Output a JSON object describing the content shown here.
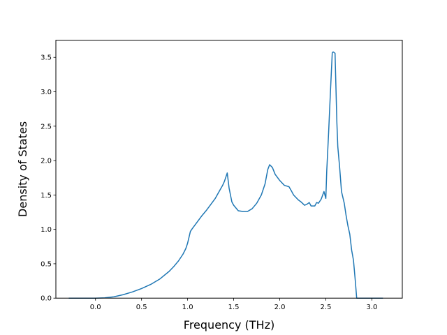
{
  "chart_data": {
    "type": "line",
    "title": "",
    "xlabel": "Frequency (THz)",
    "ylabel": "Density of States",
    "xlim": [
      -0.43,
      3.33
    ],
    "ylim": [
      0,
      3.75
    ],
    "xticks": [
      0.0,
      0.5,
      1.0,
      1.5,
      2.0,
      2.5,
      3.0
    ],
    "xtick_labels": [
      "0.0",
      "0.5",
      "1.0",
      "1.5",
      "2.0",
      "2.5",
      "3.0"
    ],
    "yticks": [
      0.0,
      0.5,
      1.0,
      1.5,
      2.0,
      2.5,
      3.0,
      3.5
    ],
    "ytick_labels": [
      "0.0",
      "0.5",
      "1.0",
      "1.5",
      "2.0",
      "2.5",
      "3.0",
      "3.5"
    ],
    "grid": false,
    "legend": "none",
    "line_color": "#1f77b4",
    "series": [
      {
        "x": [
          -0.29,
          -0.1,
          0.0,
          0.1,
          0.2,
          0.3,
          0.4,
          0.5,
          0.6,
          0.7,
          0.8,
          0.85,
          0.9,
          0.95,
          0.98,
          1.0,
          1.03,
          1.05,
          1.1,
          1.15,
          1.2,
          1.25,
          1.3,
          1.35,
          1.38,
          1.4,
          1.43,
          1.45,
          1.48,
          1.5,
          1.55,
          1.6,
          1.65,
          1.7,
          1.75,
          1.8,
          1.84,
          1.87,
          1.89,
          1.92,
          1.95,
          2.0,
          2.05,
          2.1,
          2.13,
          2.15,
          2.2,
          2.23,
          2.27,
          2.3,
          2.32,
          2.34,
          2.38,
          2.4,
          2.42,
          2.45,
          2.48,
          2.5,
          2.51,
          2.53,
          2.55,
          2.57,
          2.58,
          2.6,
          2.62,
          2.63,
          2.65,
          2.67,
          2.7,
          2.72,
          2.74,
          2.76,
          2.78,
          2.8,
          2.82,
          2.835,
          2.85,
          3.0,
          3.12
        ],
        "y": [
          0.0,
          0.0,
          0.0,
          0.005,
          0.02,
          0.05,
          0.09,
          0.14,
          0.2,
          0.28,
          0.39,
          0.46,
          0.54,
          0.64,
          0.72,
          0.8,
          0.97,
          1.01,
          1.1,
          1.19,
          1.27,
          1.36,
          1.45,
          1.57,
          1.64,
          1.7,
          1.82,
          1.6,
          1.4,
          1.35,
          1.27,
          1.26,
          1.26,
          1.3,
          1.38,
          1.5,
          1.66,
          1.87,
          1.94,
          1.9,
          1.8,
          1.71,
          1.64,
          1.62,
          1.55,
          1.5,
          1.43,
          1.4,
          1.35,
          1.37,
          1.39,
          1.34,
          1.34,
          1.39,
          1.38,
          1.44,
          1.55,
          1.45,
          1.85,
          2.4,
          3.0,
          3.57,
          3.58,
          3.56,
          2.55,
          2.2,
          1.9,
          1.55,
          1.38,
          1.2,
          1.05,
          0.93,
          0.7,
          0.55,
          0.25,
          0.0,
          0.0,
          0.0,
          0.0
        ]
      }
    ]
  }
}
